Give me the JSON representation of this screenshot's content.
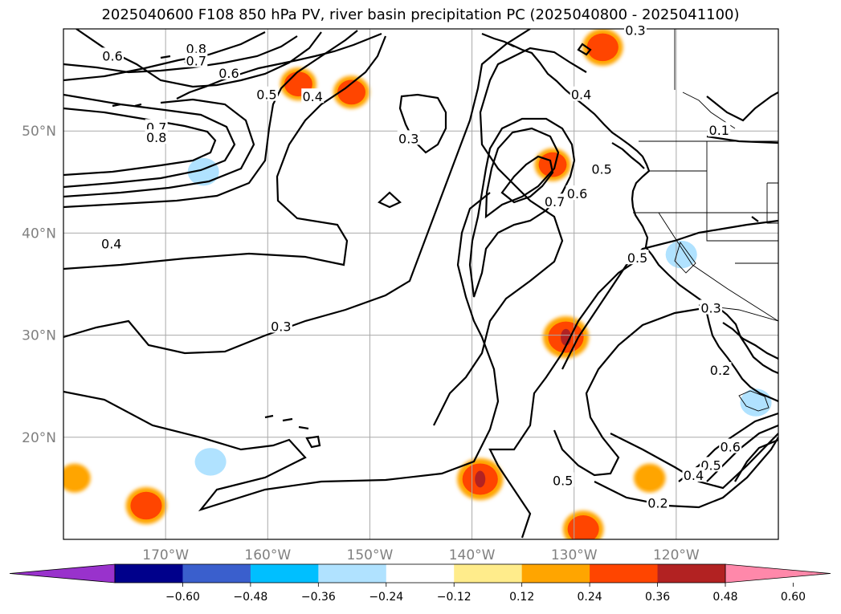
{
  "chart_data": {
    "type": "contour-map",
    "title": "2025040600 F108 850 hPa PV, river basin precipitation PC (2025040800 - 2025041100)",
    "projection": "plate-carree",
    "lon_range": [
      -180,
      -110
    ],
    "lat_range": [
      10,
      60
    ],
    "lat_ticks": [
      {
        "value": 20,
        "label": "20°N"
      },
      {
        "value": 30,
        "label": "30°N"
      },
      {
        "value": 40,
        "label": "40°N"
      },
      {
        "value": 50,
        "label": "50°N"
      }
    ],
    "lon_ticks": [
      {
        "value": -170,
        "label": "170°W"
      },
      {
        "value": -160,
        "label": "160°W"
      },
      {
        "value": -150,
        "label": "150°W"
      },
      {
        "value": -140,
        "label": "140°W"
      },
      {
        "value": -130,
        "label": "130°W"
      },
      {
        "value": -120,
        "label": "120°W"
      }
    ],
    "grid": true,
    "contour_field": "850 hPa PV",
    "contour_labels": [
      {
        "text": "0.6",
        "lon": -175.2,
        "lat": 57.3
      },
      {
        "text": "0.8",
        "lon": -167.0,
        "lat": 58.0
      },
      {
        "text": "0.7",
        "lon": -167.0,
        "lat": 56.8
      },
      {
        "text": "0.6",
        "lon": -163.8,
        "lat": 55.6
      },
      {
        "text": "0.5",
        "lon": -160.1,
        "lat": 53.5
      },
      {
        "text": "0.4",
        "lon": -155.6,
        "lat": 53.3
      },
      {
        "text": "0.7",
        "lon": -170.9,
        "lat": 50.3
      },
      {
        "text": "0.8",
        "lon": -170.9,
        "lat": 49.3
      },
      {
        "text": "0.4",
        "lon": -175.3,
        "lat": 38.9
      },
      {
        "text": "0.3",
        "lon": -146.2,
        "lat": 49.2
      },
      {
        "text": "0.7",
        "lon": -131.9,
        "lat": 43.0
      },
      {
        "text": "0.6",
        "lon": -129.7,
        "lat": 43.8
      },
      {
        "text": "0.5",
        "lon": -127.3,
        "lat": 46.2
      },
      {
        "text": "0.4",
        "lon": -129.3,
        "lat": 53.5
      },
      {
        "text": "0.3",
        "lon": -124.0,
        "lat": 59.8
      },
      {
        "text": "0.5",
        "lon": -123.8,
        "lat": 37.5
      },
      {
        "text": "0.3",
        "lon": -158.7,
        "lat": 30.8
      },
      {
        "text": "0.3",
        "lon": -116.6,
        "lat": 32.6
      },
      {
        "text": "0.2",
        "lon": -115.7,
        "lat": 26.5
      },
      {
        "text": "0.1",
        "lon": -115.8,
        "lat": 50.0
      },
      {
        "text": "0.6",
        "lon": -114.7,
        "lat": 19.0
      },
      {
        "text": "0.5",
        "lon": -116.6,
        "lat": 17.2
      },
      {
        "text": "0.4",
        "lon": -118.3,
        "lat": 16.2
      },
      {
        "text": "0.5",
        "lon": -131.1,
        "lat": 15.7
      },
      {
        "text": "0.2",
        "lon": -121.8,
        "lat": 13.5
      }
    ],
    "shaded_field": "river basin precipitation PC",
    "period": "2025040800 - 2025041100",
    "shaded_patches": [
      {
        "lon": -171.9,
        "lat": 13.3,
        "value": 0.3
      },
      {
        "lon": -139.2,
        "lat": 15.9,
        "value": 0.36
      },
      {
        "lon": -130.8,
        "lat": 29.8,
        "value": 0.36
      },
      {
        "lon": -129.1,
        "lat": 11.0,
        "value": 0.3
      },
      {
        "lon": -157.0,
        "lat": 54.6,
        "value": 0.25
      },
      {
        "lon": -151.8,
        "lat": 53.8,
        "value": 0.25
      },
      {
        "lon": -127.2,
        "lat": 58.2,
        "value": 0.3
      },
      {
        "lon": -132.1,
        "lat": 46.7,
        "value": 0.25
      },
      {
        "lon": -165.6,
        "lat": 17.6,
        "value": -0.3
      },
      {
        "lon": -119.5,
        "lat": 37.9,
        "value": -0.3
      },
      {
        "lon": -112.2,
        "lat": 23.4,
        "value": -0.3
      },
      {
        "lon": -166.3,
        "lat": 46.0,
        "value": -0.3
      },
      {
        "lon": -178.9,
        "lat": 16.0,
        "value": 0.2
      },
      {
        "lon": -122.6,
        "lat": 16.0,
        "value": 0.2
      }
    ],
    "colorbar": {
      "extend": "both",
      "levels": [
        -0.72,
        -0.6,
        -0.48,
        -0.36,
        -0.24,
        -0.12,
        0.12,
        0.24,
        0.36,
        0.48,
        0.6,
        0.72
      ],
      "tick_labels": [
        "−0.60",
        "−0.48",
        "−0.36",
        "−0.24",
        "−0.12",
        "0.12",
        "0.24",
        "0.36",
        "0.48",
        "0.60"
      ],
      "under_color": "#9932cc",
      "over_color": "#ff88aa",
      "colors": [
        "#00008b",
        "#3a5fcd",
        "#00bfff",
        "#b0e2ff",
        "#ffffff",
        "#ffec8b",
        "#ffa500",
        "#ff4500",
        "#b22222"
      ]
    }
  }
}
